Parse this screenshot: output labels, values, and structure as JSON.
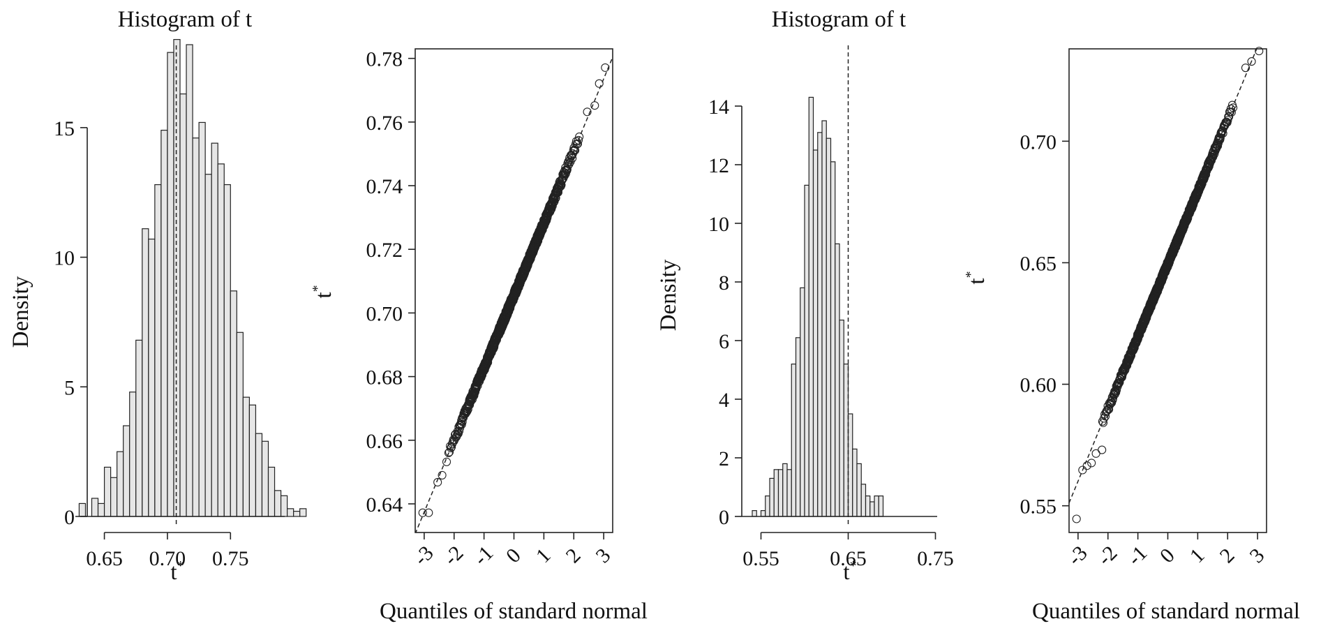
{
  "chart_data": [
    {
      "type": "bar",
      "title": "Histogram of t",
      "xlabel": "t*",
      "ylabel": "Density",
      "xlim": [
        0.627,
        0.793
      ],
      "ylim": [
        0,
        17.5
      ],
      "xticks": [
        "0.65",
        "0.70",
        "0.75"
      ],
      "yticks": [
        "0",
        "5",
        "10",
        "15"
      ],
      "bin_start": 0.63,
      "bin_width": 0.005,
      "values": [
        0.5,
        0.0,
        0.7,
        0.5,
        1.9,
        1.5,
        2.5,
        3.5,
        4.8,
        6.8,
        11.1,
        10.7,
        12.8,
        14.9,
        17.9,
        18.4,
        16.3,
        18.2,
        14.6,
        15.2,
        13.2,
        14.4,
        13.6,
        12.8,
        8.7,
        7.1,
        4.6,
        4.3,
        3.2,
        2.9,
        1.9,
        1.0,
        0.8,
        0.3,
        0.2,
        0.3
      ],
      "reference_line": 0.707
    },
    {
      "type": "scatter",
      "title": "",
      "xlabel": "Quantiles of standard normal",
      "ylabel": "t*",
      "xlim": [
        -3.3,
        3.3
      ],
      "ylim": [
        0.631,
        0.783
      ],
      "xticks": [
        "-3",
        "-2",
        "-1",
        "0",
        "1",
        "2",
        "3"
      ],
      "yticks": [
        "0.64",
        "0.66",
        "0.68",
        "0.70",
        "0.72",
        "0.74",
        "0.76",
        "0.78"
      ],
      "mean": 0.7055,
      "sd": 0.0227,
      "tail_points": [
        [
          -3.05,
          0.6372
        ],
        [
          -2.85,
          0.6372
        ],
        [
          -2.55,
          0.6468
        ],
        [
          -2.4,
          0.649
        ],
        [
          -2.25,
          0.6532
        ],
        [
          2.45,
          0.7632
        ],
        [
          2.7,
          0.7652
        ],
        [
          2.85,
          0.7721
        ],
        [
          3.05,
          0.7771
        ]
      ]
    },
    {
      "type": "bar",
      "title": "Histogram of t",
      "xlabel": "t*",
      "ylabel": "Density",
      "xlim": [
        0.528,
        0.752
      ],
      "ylim": [
        0,
        15
      ],
      "xticks": [
        "0.55",
        "0.65",
        "0.75"
      ],
      "yticks": [
        "0",
        "2",
        "4",
        "6",
        "8",
        "10",
        "12",
        "14"
      ],
      "bin_start": 0.54,
      "bin_width": 0.005,
      "values": [
        0.2,
        0.0,
        0.2,
        0.7,
        1.3,
        1.6,
        1.6,
        1.8,
        1.6,
        5.2,
        6.1,
        7.8,
        11.3,
        14.3,
        12.5,
        13.1,
        13.5,
        12.9,
        12.1,
        9.3,
        6.7,
        5.2,
        3.5,
        2.3,
        1.8,
        1.1,
        0.7,
        0.5,
        0.7,
        0.7
      ],
      "reference_line": 0.65
    },
    {
      "type": "scatter",
      "title": "",
      "xlabel": "Quantiles of standard normal",
      "ylabel": "t*",
      "xlim": [
        -3.3,
        3.3
      ],
      "ylim": [
        0.539,
        0.738
      ],
      "xticks": [
        "-3",
        "-2",
        "-1",
        "0",
        "1",
        "2",
        "3"
      ],
      "yticks": [
        "0.55",
        "0.60",
        "0.65",
        "0.70"
      ],
      "mean": 0.6495,
      "sd": 0.0298,
      "tail_points": [
        [
          -3.05,
          0.5446
        ],
        [
          -2.85,
          0.5647
        ],
        [
          -2.7,
          0.5665
        ],
        [
          -2.55,
          0.5676
        ],
        [
          -2.4,
          0.5715
        ],
        [
          -2.2,
          0.573
        ],
        [
          2.6,
          0.7302
        ],
        [
          2.8,
          0.7328
        ],
        [
          3.05,
          0.7371
        ]
      ]
    }
  ]
}
